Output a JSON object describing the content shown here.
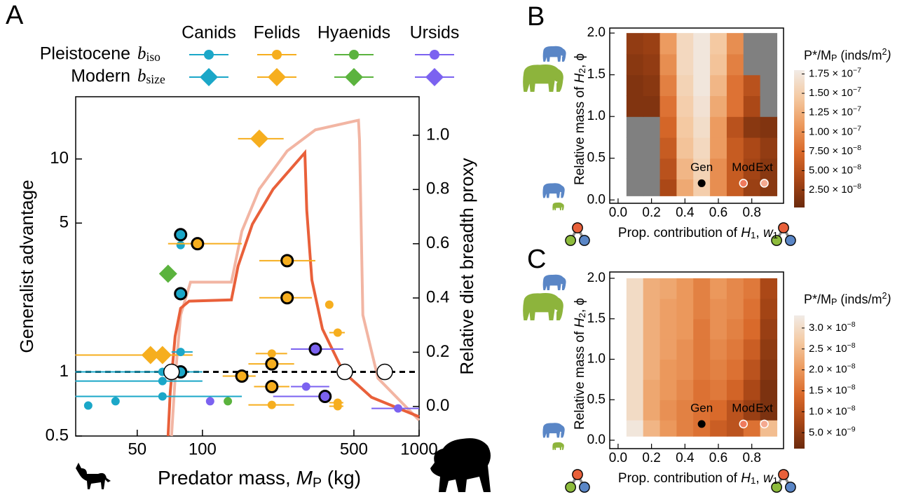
{
  "chart_data": [
    {
      "type": "scatter",
      "panel": "A",
      "xlabel": [
        "Predator mass, ",
        "M",
        {
          "sub": "P"
        },
        " (kg)"
      ],
      "ylabel": "Generalist advantage",
      "y2label": "Relative diet breadth proxy",
      "xscale": "log",
      "yscale": "log",
      "xlim": [
        26,
        1000
      ],
      "xticks": [
        50,
        100,
        500,
        1000
      ],
      "ylim": [
        0.5,
        19.6
      ],
      "yticks": [
        0.5,
        1,
        5,
        10
      ],
      "y2lim": [
        -0.109,
        1.142
      ],
      "y2ticks": [
        {
          "value": 0,
          "label": "0.0"
        },
        0.2,
        0.4,
        0.6,
        0.8,
        {
          "value": 1,
          "label": "1.0"
        }
      ],
      "reference_line": 1,
      "legend_rows": [
        {
          "label": "Pleistocene",
          "symbol": [
            "b",
            {
              "sub": "iso"
            }
          ],
          "marker": "circle"
        },
        {
          "label": "Modern",
          "symbol": [
            "b",
            {
              "sub": "size"
            }
          ],
          "marker": "diamond"
        }
      ],
      "series": [
        {
          "name": "Canids",
          "color": "#1ba7c8",
          "pleistocene": {
            "x": [
              29.7,
              39.7,
              65.4,
              65.4,
              65.4,
              79.3,
              79.3,
              79.3,
              79.3,
              79.3
            ],
            "values": [
              0.695,
              0.728,
              0.767,
              0.906,
              1.0,
              1.24,
              3.94,
              4.41,
              2.33,
              1.0
            ],
            "xmin": [
              null,
              null,
              25.9,
              25.9,
              25.9,
              72,
              null,
              null,
              null,
              null
            ],
            "xmax": [
              null,
              null,
              152,
              100,
              100,
              90.1,
              null,
              null,
              null,
              100
            ],
            "outlined": [
              false,
              false,
              false,
              false,
              false,
              false,
              false,
              true,
              true,
              true
            ]
          },
          "modern": {
            "x": [],
            "values": [],
            "xmin": [],
            "xmax": []
          }
        },
        {
          "name": "Felids",
          "color": "#f6ae1e",
          "pleistocene": {
            "x": [
              94.9,
              246,
              246,
              152,
              209,
              209,
              209,
              209,
              385,
              421,
              421,
              421
            ],
            "values": [
              4.0,
              3.33,
              2.23,
              0.956,
              1.22,
              1.09,
              0.853,
              0.7,
              2.07,
              1.53,
              0.717,
              0.69
            ],
            "xmin": [
              69.4,
              183,
              183,
              124,
              176,
              163,
              173,
              163,
              null,
              385,
              385,
              385
            ],
            "xmax": [
              152,
              332,
              320,
              176,
              246,
              265,
              252,
              265,
              null,
              454,
              447,
              447
            ],
            "outlined": [
              true,
              true,
              true,
              true,
              false,
              true,
              true,
              false,
              false,
              false,
              false,
              false
            ]
          },
          "modern": {
            "x": [
              57.6,
              65.4,
              183
            ],
            "values": [
              1.2,
              1.2,
              12.45
            ],
            "xmin": [
              25.9,
              null,
              146
            ],
            "xmax": [
              90.1,
              null,
              237
            ]
          }
        },
        {
          "name": "Hyaenids",
          "color": "#5bb33e",
          "pleistocene": {
            "x": [
              131
            ],
            "values": [
              0.728
            ],
            "xmin": [
              null
            ],
            "xmax": [
              null
            ],
            "outlined": [
              false
            ]
          },
          "modern": {
            "x": [
              69.4
            ],
            "values": [
              2.89
            ],
            "xmin": [
              null
            ],
            "xmax": [
              null
            ]
          }
        },
        {
          "name": "Ursids",
          "color": "#7b62f0",
          "pleistocene": {
            "x": [
              108.5,
              332,
              368,
              301,
              800
            ],
            "values": [
              0.728,
              1.28,
              0.767,
              0.853,
              0.674
            ],
            "xmin": [
              null,
              256,
              212,
              256,
              603
            ],
            "xmax": [
              null,
              447,
              385,
              385,
              1000
            ],
            "outlined": [
              false,
              true,
              true,
              false,
              false
            ]
          },
          "modern": {
            "x": [],
            "values": [],
            "xmin": [],
            "xmax": []
          }
        }
      ],
      "curves": [
        {
          "color": "#f2b5a3",
          "x": [
            72,
            74.8,
            79.3,
            88.1,
            136,
            152,
            183,
            246,
            332,
            525,
            531,
            550,
            646,
            1000
          ],
          "values": [
            0.5,
            0.934,
            1.85,
            2.64,
            2.64,
            4.58,
            7.22,
            10.9,
            13.7,
            15.2,
            12.2,
            1.85,
            0.934,
            0.593
          ]
        },
        {
          "color": "#e9603a",
          "x": [
            69.4,
            71.0,
            74.8,
            79.3,
            86.8,
            136,
            146,
            170,
            212,
            266,
            297,
            303,
            320,
            358,
            447,
            603,
            1000
          ],
          "values": [
            0.5,
            0.8,
            1.47,
            1.99,
            2.15,
            2.18,
            3.14,
            4.94,
            7.22,
            9.41,
            10.7,
            5.75,
            2.7,
            1.59,
            1.0,
            0.76,
            0.616
          ]
        }
      ],
      "open_points": {
        "x": [
          72,
          454,
          694
        ],
        "values": [
          1,
          1,
          1
        ]
      }
    },
    {
      "type": "heatmap",
      "panel": "B",
      "xlabel": [
        "Prop. contribution of ",
        "H",
        {
          "sub": "1"
        },
        ", ",
        "w",
        {
          "sub": "1"
        }
      ],
      "ylabel": [
        "Relative mass of ",
        "H",
        {
          "sub": "2"
        },
        ", ϕ"
      ],
      "colorbar_title": [
        "P*/M",
        {
          "sub": "P"
        },
        " (inds/m",
        {
          "sup": "2"
        },
        ")"
      ],
      "xlim": [
        -0.05,
        0.99
      ],
      "xticks": [
        {
          "value": 0,
          "label": "0.0"
        },
        0.2,
        0.4,
        0.6,
        0.8
      ],
      "ylim": [
        -0.04,
        2.06
      ],
      "yticks": [
        {
          "value": 0,
          "label": "0.0"
        },
        0.5,
        {
          "value": 1,
          "label": "1.0"
        },
        1.5,
        {
          "value": 2,
          "label": "2.0"
        }
      ],
      "zlim": [
        2.4e-09,
        1.8e-07
      ],
      "zticks": [
        {
          "value": 2.5e-08,
          "label": "2.50 × 10−8"
        },
        {
          "value": 5e-08,
          "label": "5.00 × 10−8"
        },
        {
          "value": 7.5e-08,
          "label": "7.50 × 10−8"
        },
        {
          "value": 1e-07,
          "label": "1.00 × 10−7"
        },
        {
          "value": 1.25e-07,
          "label": "1.25 × 10−7"
        },
        {
          "value": 1.5e-07,
          "label": "1.50 × 10−7"
        },
        {
          "value": 1.75e-07,
          "label": "1.75 × 10−7"
        }
      ],
      "colormap": [
        "#6b2a0d",
        "#a84616",
        "#d9692a",
        "#ec9a5e",
        "#f4c9a1",
        "#f1ebe6"
      ],
      "null_color": "#808080",
      "x_edges": [
        0.05,
        0.15,
        0.25,
        0.35,
        0.45,
        0.55,
        0.65,
        0.75,
        0.85,
        0.95
      ],
      "y_edges": [
        0.05,
        0.25,
        0.5,
        0.75,
        1.0,
        1.25,
        1.5,
        1.75,
        2.0
      ],
      "z": [
        [
          null,
          null,
          4e-08,
          1.2e-07,
          1.5e-07,
          1e-07,
          6e-08,
          3e-08,
          2e-08
        ],
        [
          null,
          null,
          5e-08,
          1.3e-07,
          1.55e-07,
          1e-07,
          6e-08,
          3.5e-08,
          2e-08
        ],
        [
          null,
          null,
          6e-08,
          1.4e-07,
          1.6e-07,
          1.1e-07,
          6e-08,
          4e-08,
          2.5e-08
        ],
        [
          null,
          null,
          7e-08,
          1.45e-07,
          1.65e-07,
          1.1e-07,
          5e-08,
          2e-08,
          1.5e-08
        ],
        [
          1.5e-08,
          1.5e-08,
          8e-08,
          1.5e-07,
          1.7e-07,
          1.2e-07,
          8e-08,
          4e-08,
          null
        ],
        [
          1.5e-08,
          2e-08,
          9e-08,
          1.55e-07,
          1.75e-07,
          1.3e-07,
          8e-08,
          5e-08,
          null
        ],
        [
          2e-08,
          2.5e-08,
          1e-07,
          1.6e-07,
          1.75e-07,
          1.4e-07,
          9e-08,
          null,
          null
        ],
        [
          2.5e-08,
          3e-08,
          1.1e-07,
          1.6e-07,
          1.75e-07,
          1.45e-07,
          1e-07,
          null,
          null
        ]
      ],
      "points": {
        "x": [
          0.5,
          0.75,
          0.875
        ],
        "values": [
          0.2,
          0.2,
          0.2
        ],
        "labels": [
          "Gen",
          "Mod",
          "Ext"
        ],
        "colors": [
          "#000000",
          "#ef7a5d",
          "#f4a990"
        ]
      }
    },
    {
      "type": "heatmap",
      "panel": "C",
      "xlabel": [
        "Prop. contribution of ",
        "H",
        {
          "sub": "1"
        },
        ", ",
        "w",
        {
          "sub": "1"
        }
      ],
      "ylabel": [
        "Relative mass of ",
        "H",
        {
          "sub": "2"
        },
        ", ϕ"
      ],
      "colorbar_title": [
        "P*/M",
        {
          "sub": "P"
        },
        " (inds/m",
        {
          "sup": "2"
        },
        ")"
      ],
      "xlim": [
        -0.05,
        0.99
      ],
      "xticks": [
        {
          "value": 0,
          "label": "0.0"
        },
        0.2,
        0.4,
        0.6,
        0.8
      ],
      "ylim": [
        -0.104,
        2.078
      ],
      "yticks": [
        {
          "value": 0,
          "label": "0.0"
        },
        0.5,
        {
          "value": 1,
          "label": "1.0"
        },
        1.5,
        {
          "value": 2,
          "label": "2.0"
        }
      ],
      "zlim": [
        1.2e-09,
        3.3e-08
      ],
      "zticks": [
        {
          "value": 5e-09,
          "label": "5.0 × 10−9"
        },
        {
          "value": 1e-08,
          "label": "1.0 × 10−8"
        },
        {
          "value": 1.5e-08,
          "label": "1.5 × 10−8"
        },
        {
          "value": 2e-08,
          "label": "2.0 × 10−8"
        },
        {
          "value": 2.5e-08,
          "label": "2.5 × 10−8"
        },
        {
          "value": 3e-08,
          "label": "3.0 × 10−8"
        }
      ],
      "colormap": [
        "#6b2a0d",
        "#a84616",
        "#d9692a",
        "#ec9a5e",
        "#f4c9a1",
        "#f1ebe6"
      ],
      "null_color": "#808080",
      "x_edges": [
        0.05,
        0.15,
        0.25,
        0.35,
        0.45,
        0.55,
        0.65,
        0.75,
        0.85,
        0.95
      ],
      "y_edges": [
        0.05,
        0.25,
        0.5,
        0.75,
        1.0,
        1.25,
        1.5,
        1.75,
        2.0
      ],
      "z": [
        [
          3.2e-08,
          2.4e-08,
          2e-08,
          1.7e-08,
          1.5e-08,
          1.2e-08,
          1e-08,
          1.5e-08,
          2.5e-08
        ],
        [
          3e-08,
          2.2e-08,
          1.9e-08,
          1.7e-08,
          1.5e-08,
          1.4e-08,
          1e-08,
          6e-09,
          3e-09
        ],
        [
          3e-08,
          2.2e-08,
          2e-08,
          1.8e-08,
          1.5e-08,
          1.6e-08,
          1.3e-08,
          8e-09,
          3e-09
        ],
        [
          3e-08,
          2.3e-08,
          2e-08,
          1.9e-08,
          1.6e-08,
          1.7e-08,
          1.5e-08,
          1e-08,
          4e-09
        ],
        [
          3e-08,
          2.3e-08,
          2.1e-08,
          1.9e-08,
          1.6e-08,
          1.8e-08,
          1.6e-08,
          1.2e-08,
          5e-09
        ],
        [
          3e-08,
          2.3e-08,
          2.1e-08,
          2e-08,
          1.6e-08,
          1.9e-08,
          1.7e-08,
          1.4e-08,
          6e-09
        ],
        [
          3e-08,
          2.3e-08,
          2.1e-08,
          2e-08,
          1.7e-08,
          1.9e-08,
          1.8e-08,
          1.5e-08,
          7e-09
        ],
        [
          3e-08,
          2.3e-08,
          2.2e-08,
          2e-08,
          1.7e-08,
          2e-08,
          1.8e-08,
          1.6e-08,
          8e-09
        ]
      ],
      "points": {
        "x": [
          0.5,
          0.75,
          0.875
        ],
        "values": [
          0.2,
          0.2,
          0.2
        ],
        "labels": [
          "Gen",
          "Mod",
          "Ext"
        ],
        "colors": [
          "#000000",
          "#ef7a5d",
          "#f4a990"
        ]
      }
    }
  ]
}
